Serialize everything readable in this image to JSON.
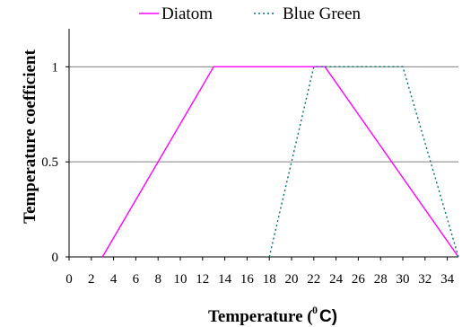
{
  "chart_data": {
    "type": "line",
    "title": "",
    "xlabel": "Temperature (°C)",
    "xlabel_prefix": "Temperature (",
    "xlabel_degree": "0",
    "xlabel_unit": "C)",
    "ylabel": "Temperature coefficient",
    "xlim": [
      0,
      35
    ],
    "ylim": [
      0,
      1.2
    ],
    "x_ticks": [
      0,
      2,
      4,
      6,
      8,
      10,
      12,
      14,
      16,
      18,
      20,
      22,
      24,
      26,
      28,
      30,
      32,
      34
    ],
    "x_tick_labels": [
      "0",
      "2",
      "4",
      "6",
      "8",
      "10",
      "12",
      "14",
      "16",
      "18",
      "20",
      "22",
      "24",
      "26",
      "28",
      "30",
      "32",
      "34"
    ],
    "y_ticks": [
      0,
      0.5,
      1
    ],
    "y_tick_labels": [
      "0",
      "0.5",
      "1"
    ],
    "grid": "horizontal",
    "legend_position": "top",
    "series": [
      {
        "name": "Diatom",
        "color": "#ff00ff",
        "dash": "solid",
        "x": [
          3,
          13,
          23,
          35
        ],
        "y": [
          0,
          1,
          1,
          0
        ]
      },
      {
        "name": "Blue Green",
        "color": "#007070",
        "dash": "dotted",
        "x": [
          18,
          22,
          30,
          35
        ],
        "y": [
          0,
          1,
          1,
          0
        ]
      }
    ]
  }
}
